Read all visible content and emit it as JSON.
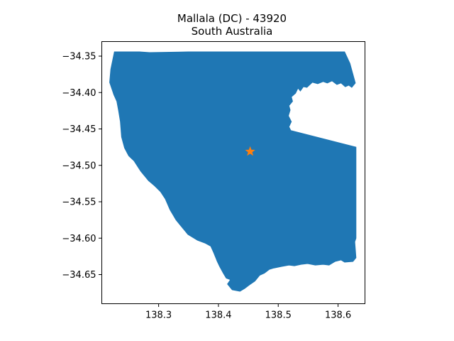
{
  "chart_data": {
    "type": "map",
    "title": "Mallala (DC) - 43920",
    "subtitle": "South Australia",
    "xlabel": "",
    "ylabel": "",
    "xlim": [
      138.205,
      138.645
    ],
    "ylim": [
      -34.69,
      -34.33
    ],
    "x_ticks": [
      138.3,
      138.4,
      138.5,
      138.6
    ],
    "x_tick_labels": [
      "138.3",
      "138.4",
      "138.5",
      "138.6"
    ],
    "y_ticks": [
      -34.35,
      -34.4,
      -34.45,
      -34.5,
      -34.55,
      -34.6,
      -34.65
    ],
    "y_tick_labels": [
      "−34.35",
      "−34.40",
      "−34.45",
      "−34.50",
      "−34.55",
      "−34.60",
      "−34.65"
    ],
    "grid": false,
    "region_color": "#1f77b4",
    "marker": {
      "lon": 138.453,
      "lat": -34.481,
      "shape": "star",
      "color": "#ff7f0e"
    },
    "region_outline": [
      [
        138.226,
        -34.344
      ],
      [
        138.268,
        -34.344
      ],
      [
        138.285,
        -34.345
      ],
      [
        138.35,
        -34.344
      ],
      [
        138.45,
        -34.344
      ],
      [
        138.55,
        -34.344
      ],
      [
        138.611,
        -34.344
      ],
      [
        138.62,
        -34.36
      ],
      [
        138.629,
        -34.387
      ],
      [
        138.623,
        -34.393
      ],
      [
        138.618,
        -34.39
      ],
      [
        138.612,
        -34.392
      ],
      [
        138.605,
        -34.387
      ],
      [
        138.598,
        -34.389
      ],
      [
        138.59,
        -34.384
      ],
      [
        138.582,
        -34.387
      ],
      [
        138.575,
        -34.385
      ],
      [
        138.566,
        -34.388
      ],
      [
        138.557,
        -34.386
      ],
      [
        138.548,
        -34.393
      ],
      [
        138.542,
        -34.392
      ],
      [
        138.537,
        -34.398
      ],
      [
        138.533,
        -34.394
      ],
      [
        138.529,
        -34.401
      ],
      [
        138.522,
        -34.406
      ],
      [
        138.524,
        -34.412
      ],
      [
        138.518,
        -34.418
      ],
      [
        138.52,
        -34.424
      ],
      [
        138.517,
        -34.432
      ],
      [
        138.522,
        -34.44
      ],
      [
        138.518,
        -34.447
      ],
      [
        138.521,
        -34.452
      ],
      [
        138.63,
        -34.475
      ],
      [
        138.63,
        -34.6
      ],
      [
        138.628,
        -34.605
      ],
      [
        138.63,
        -34.627
      ],
      [
        138.625,
        -34.632
      ],
      [
        138.611,
        -34.633
      ],
      [
        138.605,
        -34.63
      ],
      [
        138.595,
        -34.632
      ],
      [
        138.585,
        -34.637
      ],
      [
        138.575,
        -34.636
      ],
      [
        138.562,
        -34.637
      ],
      [
        138.549,
        -34.635
      ],
      [
        138.538,
        -34.636
      ],
      [
        138.527,
        -34.638
      ],
      [
        138.518,
        -34.637
      ],
      [
        138.505,
        -34.639
      ],
      [
        138.493,
        -34.641
      ],
      [
        138.485,
        -34.643
      ],
      [
        138.477,
        -34.648
      ],
      [
        138.469,
        -34.651
      ],
      [
        138.461,
        -34.659
      ],
      [
        138.452,
        -34.664
      ],
      [
        138.444,
        -34.669
      ],
      [
        138.436,
        -34.673
      ],
      [
        138.423,
        -34.671
      ],
      [
        138.415,
        -34.663
      ],
      [
        138.42,
        -34.657
      ],
      [
        138.413,
        -34.655
      ],
      [
        138.408,
        -34.648
      ],
      [
        138.402,
        -34.639
      ],
      [
        138.398,
        -34.632
      ],
      [
        138.392,
        -34.62
      ],
      [
        138.387,
        -34.611
      ],
      [
        138.378,
        -34.607
      ],
      [
        138.365,
        -34.603
      ],
      [
        138.349,
        -34.595
      ],
      [
        138.34,
        -34.586
      ],
      [
        138.329,
        -34.575
      ],
      [
        138.319,
        -34.561
      ],
      [
        138.311,
        -34.546
      ],
      [
        138.303,
        -34.536
      ],
      [
        138.293,
        -34.528
      ],
      [
        138.283,
        -34.521
      ],
      [
        138.27,
        -34.508
      ],
      [
        138.259,
        -34.494
      ],
      [
        138.25,
        -34.487
      ],
      [
        138.243,
        -34.476
      ],
      [
        138.238,
        -34.461
      ],
      [
        138.236,
        -34.44
      ],
      [
        138.233,
        -34.425
      ],
      [
        138.23,
        -34.412
      ],
      [
        138.225,
        -34.403
      ],
      [
        138.218,
        -34.386
      ],
      [
        138.22,
        -34.368
      ]
    ]
  }
}
